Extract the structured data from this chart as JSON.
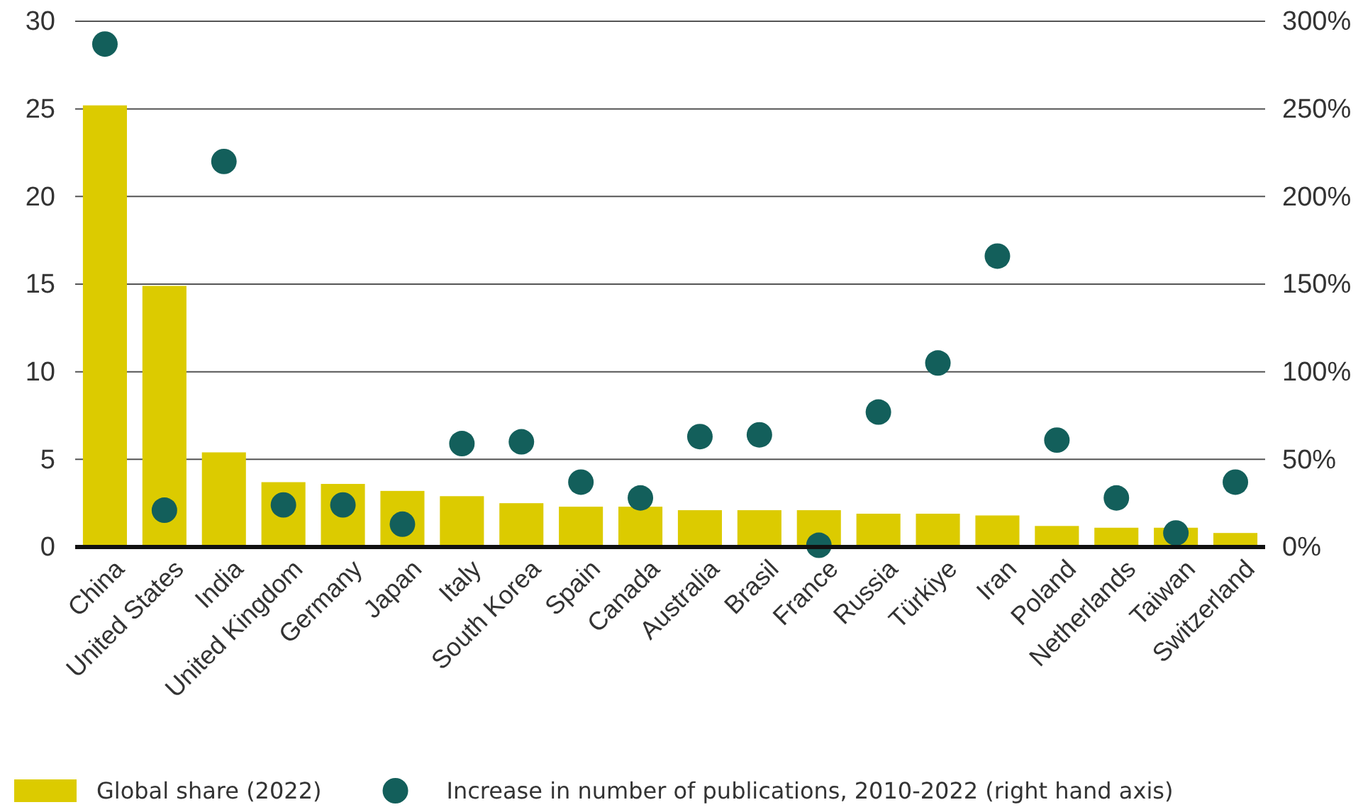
{
  "chart_data": {
    "type": "bar",
    "categories": [
      "China",
      "United States",
      "India",
      "United Kingdom",
      "Germany",
      "Japan",
      "Italy",
      "South Korea",
      "Spain",
      "Canada",
      "Australia",
      "Brasil",
      "France",
      "Russia",
      "Türkiye",
      "Iran",
      "Poland",
      "Netherlands",
      "Taiwan",
      "Switzerland"
    ],
    "series": [
      {
        "name": "Global share (2022)",
        "color": "#dccb00",
        "values": [
          25.2,
          14.9,
          5.4,
          3.7,
          3.6,
          3.2,
          2.9,
          2.5,
          2.3,
          2.3,
          2.1,
          2.1,
          2.1,
          1.9,
          1.9,
          1.8,
          1.2,
          1.1,
          1.1,
          0.8
        ]
      },
      {
        "name": "Increase in number of publications, 2010-2022 (right hand axis)",
        "type": "scatter",
        "axis": "y2",
        "color": "#135f5b",
        "values": [
          287,
          21,
          220,
          24,
          24,
          13,
          59,
          60,
          37,
          28,
          63,
          64,
          1,
          77,
          105,
          166,
          61,
          28,
          8,
          37
        ]
      }
    ],
    "ylim": [
      0,
      30
    ],
    "yticks": [
      0,
      5,
      10,
      15,
      20,
      25,
      30
    ],
    "y2lim": [
      0,
      300
    ],
    "y2ticks": [
      {
        "value": 0,
        "label": "0%"
      },
      {
        "value": 50,
        "label": "50%"
      },
      {
        "value": 100,
        "label": "100%"
      },
      {
        "value": 150,
        "label": "150%"
      },
      {
        "value": 200,
        "label": "200%"
      },
      {
        "value": 250,
        "label": "250%"
      },
      {
        "value": 300,
        "label": "300%"
      }
    ],
    "grid": "y",
    "legend": "bottom",
    "marker": "circle"
  }
}
